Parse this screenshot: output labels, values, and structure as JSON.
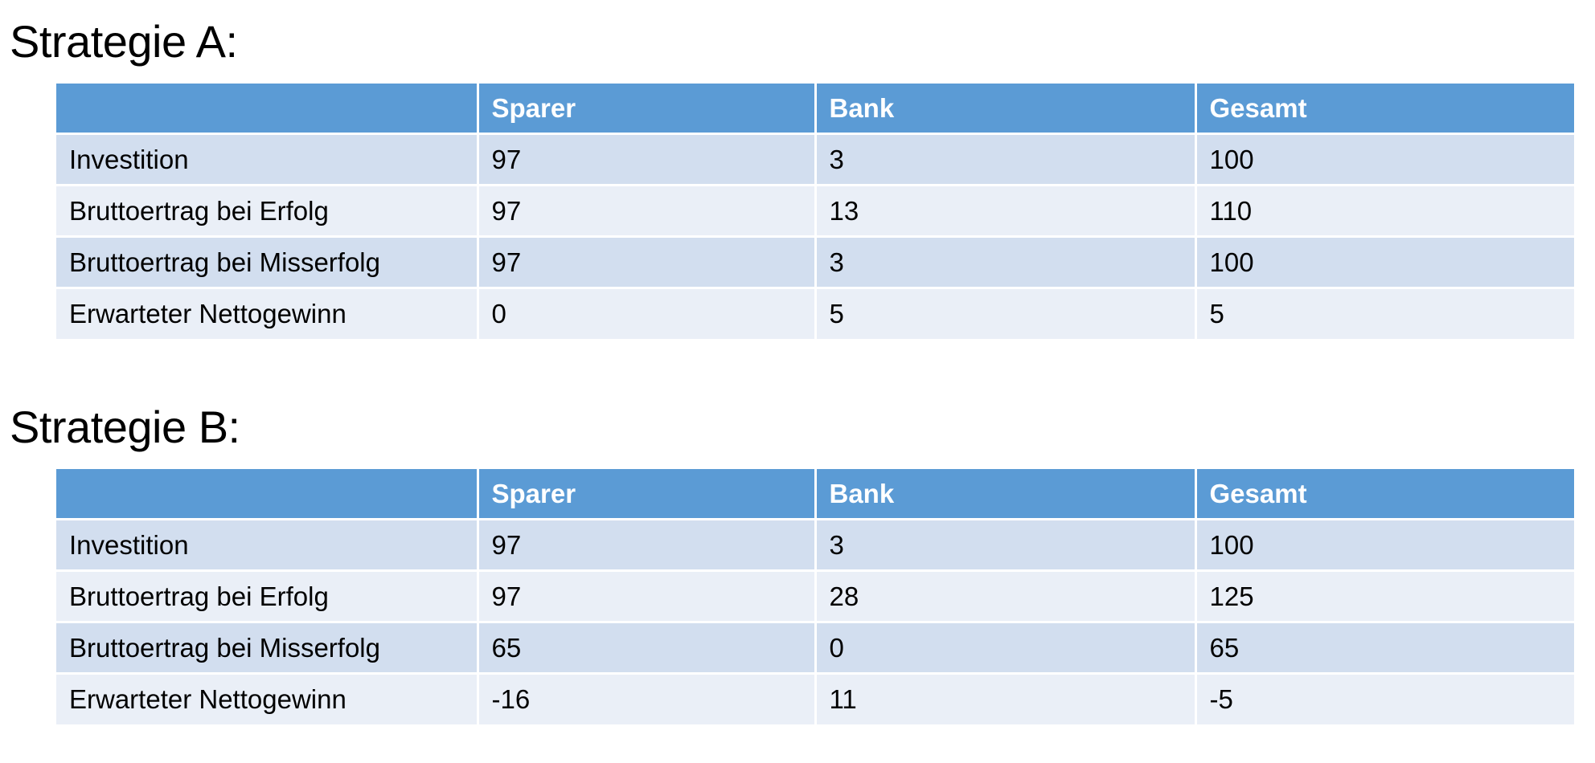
{
  "colors": {
    "header_bg": "#5b9bd5",
    "header_text": "#ffffff",
    "row_dark": "#d2deef",
    "row_light": "#eaeff7"
  },
  "strategy_a": {
    "title": "Strategie A:",
    "columns": [
      "",
      "Sparer",
      "Bank",
      "Gesamt"
    ],
    "rows": [
      {
        "label": "Investition",
        "sparer": "97",
        "bank": "3",
        "gesamt": "100"
      },
      {
        "label": "Bruttoertrag bei Erfolg",
        "sparer": "97",
        "bank": "13",
        "gesamt": "110"
      },
      {
        "label": "Bruttoertrag bei Misserfolg",
        "sparer": "97",
        "bank": "3",
        "gesamt": "100"
      },
      {
        "label": "Erwarteter Nettogewinn",
        "sparer": "0",
        "bank": "5",
        "gesamt": "5"
      }
    ]
  },
  "strategy_b": {
    "title": "Strategie B:",
    "columns": [
      "",
      "Sparer",
      "Bank",
      "Gesamt"
    ],
    "rows": [
      {
        "label": "Investition",
        "sparer": "97",
        "bank": "3",
        "gesamt": "100"
      },
      {
        "label": "Bruttoertrag bei Erfolg",
        "sparer": "97",
        "bank": "28",
        "gesamt": "125"
      },
      {
        "label": "Bruttoertrag bei Misserfolg",
        "sparer": "65",
        "bank": "0",
        "gesamt": "65"
      },
      {
        "label": "Erwarteter Nettogewinn",
        "sparer": "-16",
        "bank": "11",
        "gesamt": "-5"
      }
    ]
  }
}
